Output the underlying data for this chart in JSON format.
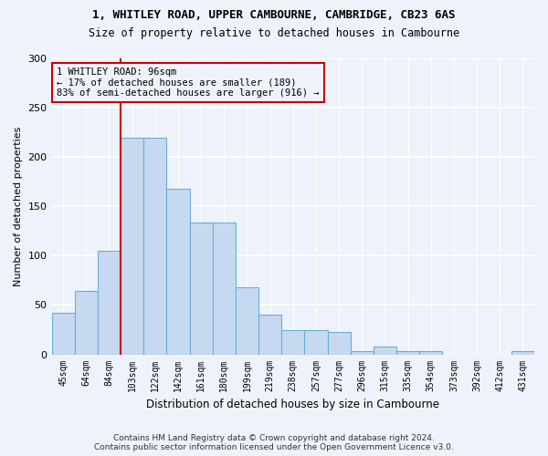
{
  "title1": "1, WHITLEY ROAD, UPPER CAMBOURNE, CAMBRIDGE, CB23 6AS",
  "title2": "Size of property relative to detached houses in Cambourne",
  "xlabel": "Distribution of detached houses by size in Cambourne",
  "ylabel": "Number of detached properties",
  "categories": [
    "45sqm",
    "64sqm",
    "84sqm",
    "103sqm",
    "122sqm",
    "142sqm",
    "161sqm",
    "180sqm",
    "199sqm",
    "219sqm",
    "238sqm",
    "257sqm",
    "277sqm",
    "296sqm",
    "315sqm",
    "335sqm",
    "354sqm",
    "373sqm",
    "392sqm",
    "412sqm",
    "431sqm"
  ],
  "values": [
    42,
    64,
    105,
    220,
    220,
    168,
    134,
    134,
    68,
    40,
    25,
    25,
    23,
    3,
    8,
    3,
    3,
    0,
    0,
    0,
    3
  ],
  "bar_color": "#c6d9f0",
  "bar_edge_color": "#6baed6",
  "background_color": "#eef2fb",
  "grid_color": "#ffffff",
  "property_bin_index": 2,
  "annotation_line1": "1 WHITLEY ROAD: 96sqm",
  "annotation_line2": "← 17% of detached houses are smaller (189)",
  "annotation_line3": "83% of semi-detached houses are larger (916) →",
  "vline_color": "#cc0000",
  "annotation_box_edge_color": "#cc0000",
  "footer_line1": "Contains HM Land Registry data © Crown copyright and database right 2024.",
  "footer_line2": "Contains public sector information licensed under the Open Government Licence v3.0.",
  "ylim": [
    0,
    300
  ],
  "yticks": [
    0,
    50,
    100,
    150,
    200,
    250,
    300
  ]
}
